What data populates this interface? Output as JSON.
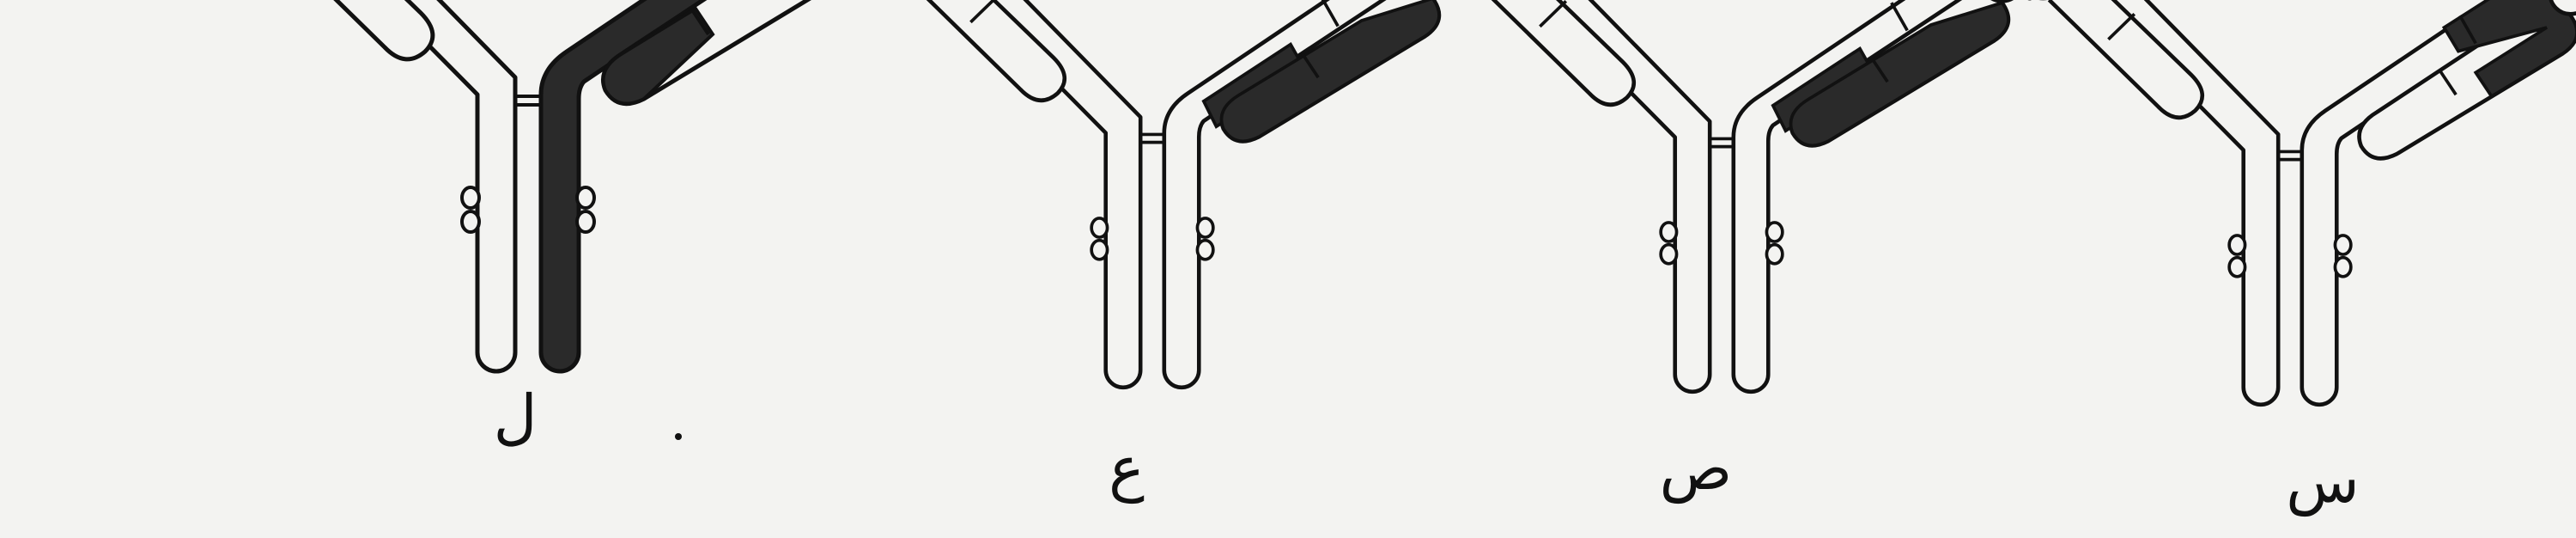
{
  "figure": {
    "background": "#f3f3f1",
    "ink": "#111111",
    "shade": "#2a2a2a",
    "antibodies": [
      {
        "label": "ل",
        "shading": "entire-right-half"
      },
      {
        "label": "ع",
        "shading": "right-heavy-and-light-chain-constant-regions"
      },
      {
        "label": "ص",
        "shading": "right-heavy-and-light-chain-constant-regions"
      },
      {
        "label": "س",
        "shading": "right-variable-region"
      }
    ]
  }
}
